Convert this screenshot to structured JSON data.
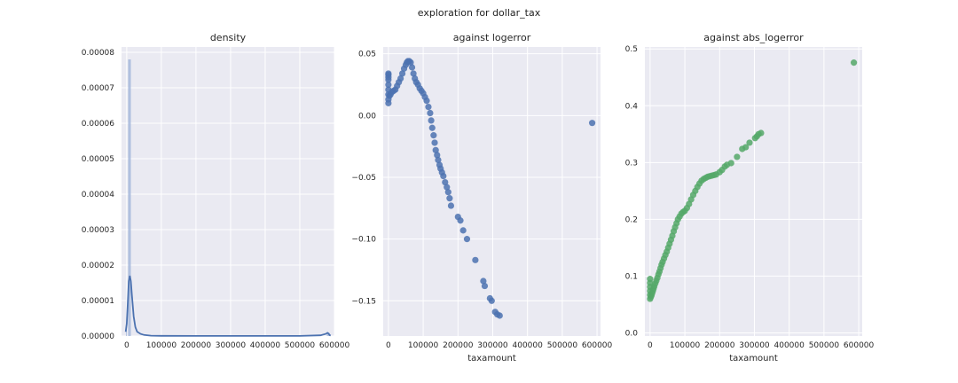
{
  "figure": {
    "suptitle": "exploration for dollar_tax"
  },
  "chart_data": [
    {
      "type": "histogram+kde",
      "title": "density",
      "xlabel": "",
      "ylabel": "",
      "xlim": [
        -15000,
        600000
      ],
      "ylim": [
        0,
        8.15e-05
      ],
      "xticks": [
        0,
        100000,
        200000,
        300000,
        400000,
        500000,
        600000
      ],
      "yticks": [
        0,
        1e-05,
        2e-05,
        3e-05,
        4e-05,
        5e-05,
        6e-05,
        7e-05,
        8e-05
      ],
      "ytick_labels": [
        "0.00000",
        "0.00001",
        "0.00002",
        "0.00003",
        "0.00004",
        "0.00005",
        "0.00006",
        "0.00007",
        "0.00008"
      ],
      "bars": [
        {
          "x0": -2000,
          "x1": 0,
          "density": 2.5e-06
        },
        {
          "x0": 4000,
          "x1": 12000,
          "density": 7.8e-05
        },
        {
          "x0": 578000,
          "x1": 586000,
          "density": 8e-07
        }
      ],
      "kde": {
        "x": [
          -3000,
          0,
          3000,
          6000,
          9000,
          12000,
          15000,
          20000,
          25000,
          30000,
          40000,
          50000,
          70000,
          100000,
          200000,
          300000,
          400000,
          500000,
          560000,
          575000,
          580000,
          583000,
          586000,
          589000
        ],
        "y": [
          1.2e-06,
          3.5e-06,
          9e-06,
          1.55e-05,
          1.7e-05,
          1.55e-05,
          1.15e-05,
          5.5e-06,
          2.5e-06,
          1.2e-06,
          6e-07,
          3e-07,
          1e-07,
          5e-08,
          2e-08,
          2e-08,
          2e-08,
          3e-08,
          2e-07,
          6e-07,
          9e-07,
          7e-07,
          3e-07,
          1e-07
        ]
      },
      "bar_color": "#a6b8dc",
      "line_color": "#4c72b0"
    },
    {
      "type": "scatter",
      "title": "against logerror",
      "xlabel": "taxamount",
      "ylabel": "",
      "xlim": [
        -15000,
        610000
      ],
      "ylim": [
        -0.1785,
        0.0555
      ],
      "xticks": [
        0,
        100000,
        200000,
        300000,
        400000,
        500000,
        600000
      ],
      "yticks": [
        -0.15,
        -0.1,
        -0.05,
        0.0,
        0.05
      ],
      "ytick_labels": [
        "−0.15",
        "−0.10",
        "−0.05",
        "0.00",
        "0.05"
      ],
      "color": "#4c72b0",
      "x": [
        0,
        0,
        0,
        0,
        0,
        0,
        0,
        0,
        0,
        3000,
        6000,
        10000,
        15000,
        20000,
        25000,
        30000,
        35000,
        40000,
        45000,
        50000,
        53000,
        56000,
        60000,
        64000,
        68000,
        72000,
        76000,
        80000,
        85000,
        90000,
        95000,
        100000,
        105000,
        110000,
        115000,
        120000,
        123000,
        126000,
        130000,
        133000,
        136000,
        140000,
        143000,
        147000,
        150000,
        154000,
        158000,
        163000,
        168000,
        172000,
        176000,
        180000,
        200000,
        207000,
        215000,
        226000,
        250000,
        273000,
        277000,
        292000,
        297000,
        307000,
        313000,
        320000,
        586000
      ],
      "y": [
        0.033,
        0.029,
        0.025,
        0.021,
        0.017,
        0.013,
        0.01,
        0.034,
        0.031,
        0.016,
        0.017,
        0.019,
        0.02,
        0.021,
        0.024,
        0.027,
        0.03,
        0.034,
        0.038,
        0.041,
        0.043,
        0.044,
        0.044,
        0.043,
        0.039,
        0.034,
        0.03,
        0.027,
        0.025,
        0.022,
        0.02,
        0.018,
        0.015,
        0.012,
        0.007,
        0.002,
        -0.004,
        -0.01,
        -0.016,
        -0.022,
        -0.028,
        -0.032,
        -0.036,
        -0.04,
        -0.043,
        -0.046,
        -0.049,
        -0.054,
        -0.058,
        -0.062,
        -0.067,
        -0.073,
        -0.082,
        -0.085,
        -0.093,
        -0.1,
        -0.117,
        -0.134,
        -0.138,
        -0.148,
        -0.15,
        -0.159,
        -0.161,
        -0.162,
        -0.006
      ]
    },
    {
      "type": "scatter",
      "title": "against abs_logerror",
      "xlabel": "taxamount",
      "ylabel": "",
      "xlim": [
        -15000,
        610000
      ],
      "ylim": [
        -0.0055,
        0.5035
      ],
      "xticks": [
        0,
        100000,
        200000,
        300000,
        400000,
        500000,
        600000
      ],
      "yticks": [
        0.0,
        0.1,
        0.2,
        0.3,
        0.4,
        0.5
      ],
      "ytick_labels": [
        "0.0",
        "0.1",
        "0.2",
        "0.3",
        "0.4",
        "0.5"
      ],
      "color": "#55a868",
      "x": [
        0,
        0,
        0,
        0,
        0,
        0,
        2000,
        4000,
        6000,
        8000,
        10000,
        12000,
        15000,
        18000,
        21000,
        24000,
        27000,
        30000,
        33000,
        36000,
        40000,
        44000,
        48000,
        52000,
        56000,
        60000,
        64000,
        68000,
        72000,
        76000,
        80000,
        85000,
        90000,
        95000,
        100000,
        106000,
        112000,
        118000,
        124000,
        130000,
        136000,
        142000,
        148000,
        154000,
        160000,
        166000,
        172000,
        178000,
        184000,
        190000,
        200000,
        207000,
        215000,
        221000,
        233000,
        250000,
        265000,
        275000,
        286000,
        302000,
        307000,
        312000,
        319000,
        586000
      ],
      "y": [
        0.095,
        0.088,
        0.081,
        0.074,
        0.067,
        0.06,
        0.063,
        0.066,
        0.07,
        0.074,
        0.078,
        0.082,
        0.087,
        0.092,
        0.097,
        0.103,
        0.108,
        0.114,
        0.12,
        0.125,
        0.131,
        0.137,
        0.143,
        0.15,
        0.157,
        0.164,
        0.171,
        0.179,
        0.186,
        0.193,
        0.2,
        0.205,
        0.21,
        0.213,
        0.215,
        0.22,
        0.227,
        0.235,
        0.243,
        0.25,
        0.257,
        0.263,
        0.268,
        0.271,
        0.273,
        0.275,
        0.276,
        0.277,
        0.278,
        0.279,
        0.283,
        0.287,
        0.293,
        0.296,
        0.299,
        0.31,
        0.324,
        0.327,
        0.335,
        0.343,
        0.346,
        0.35,
        0.352,
        0.476
      ]
    }
  ]
}
